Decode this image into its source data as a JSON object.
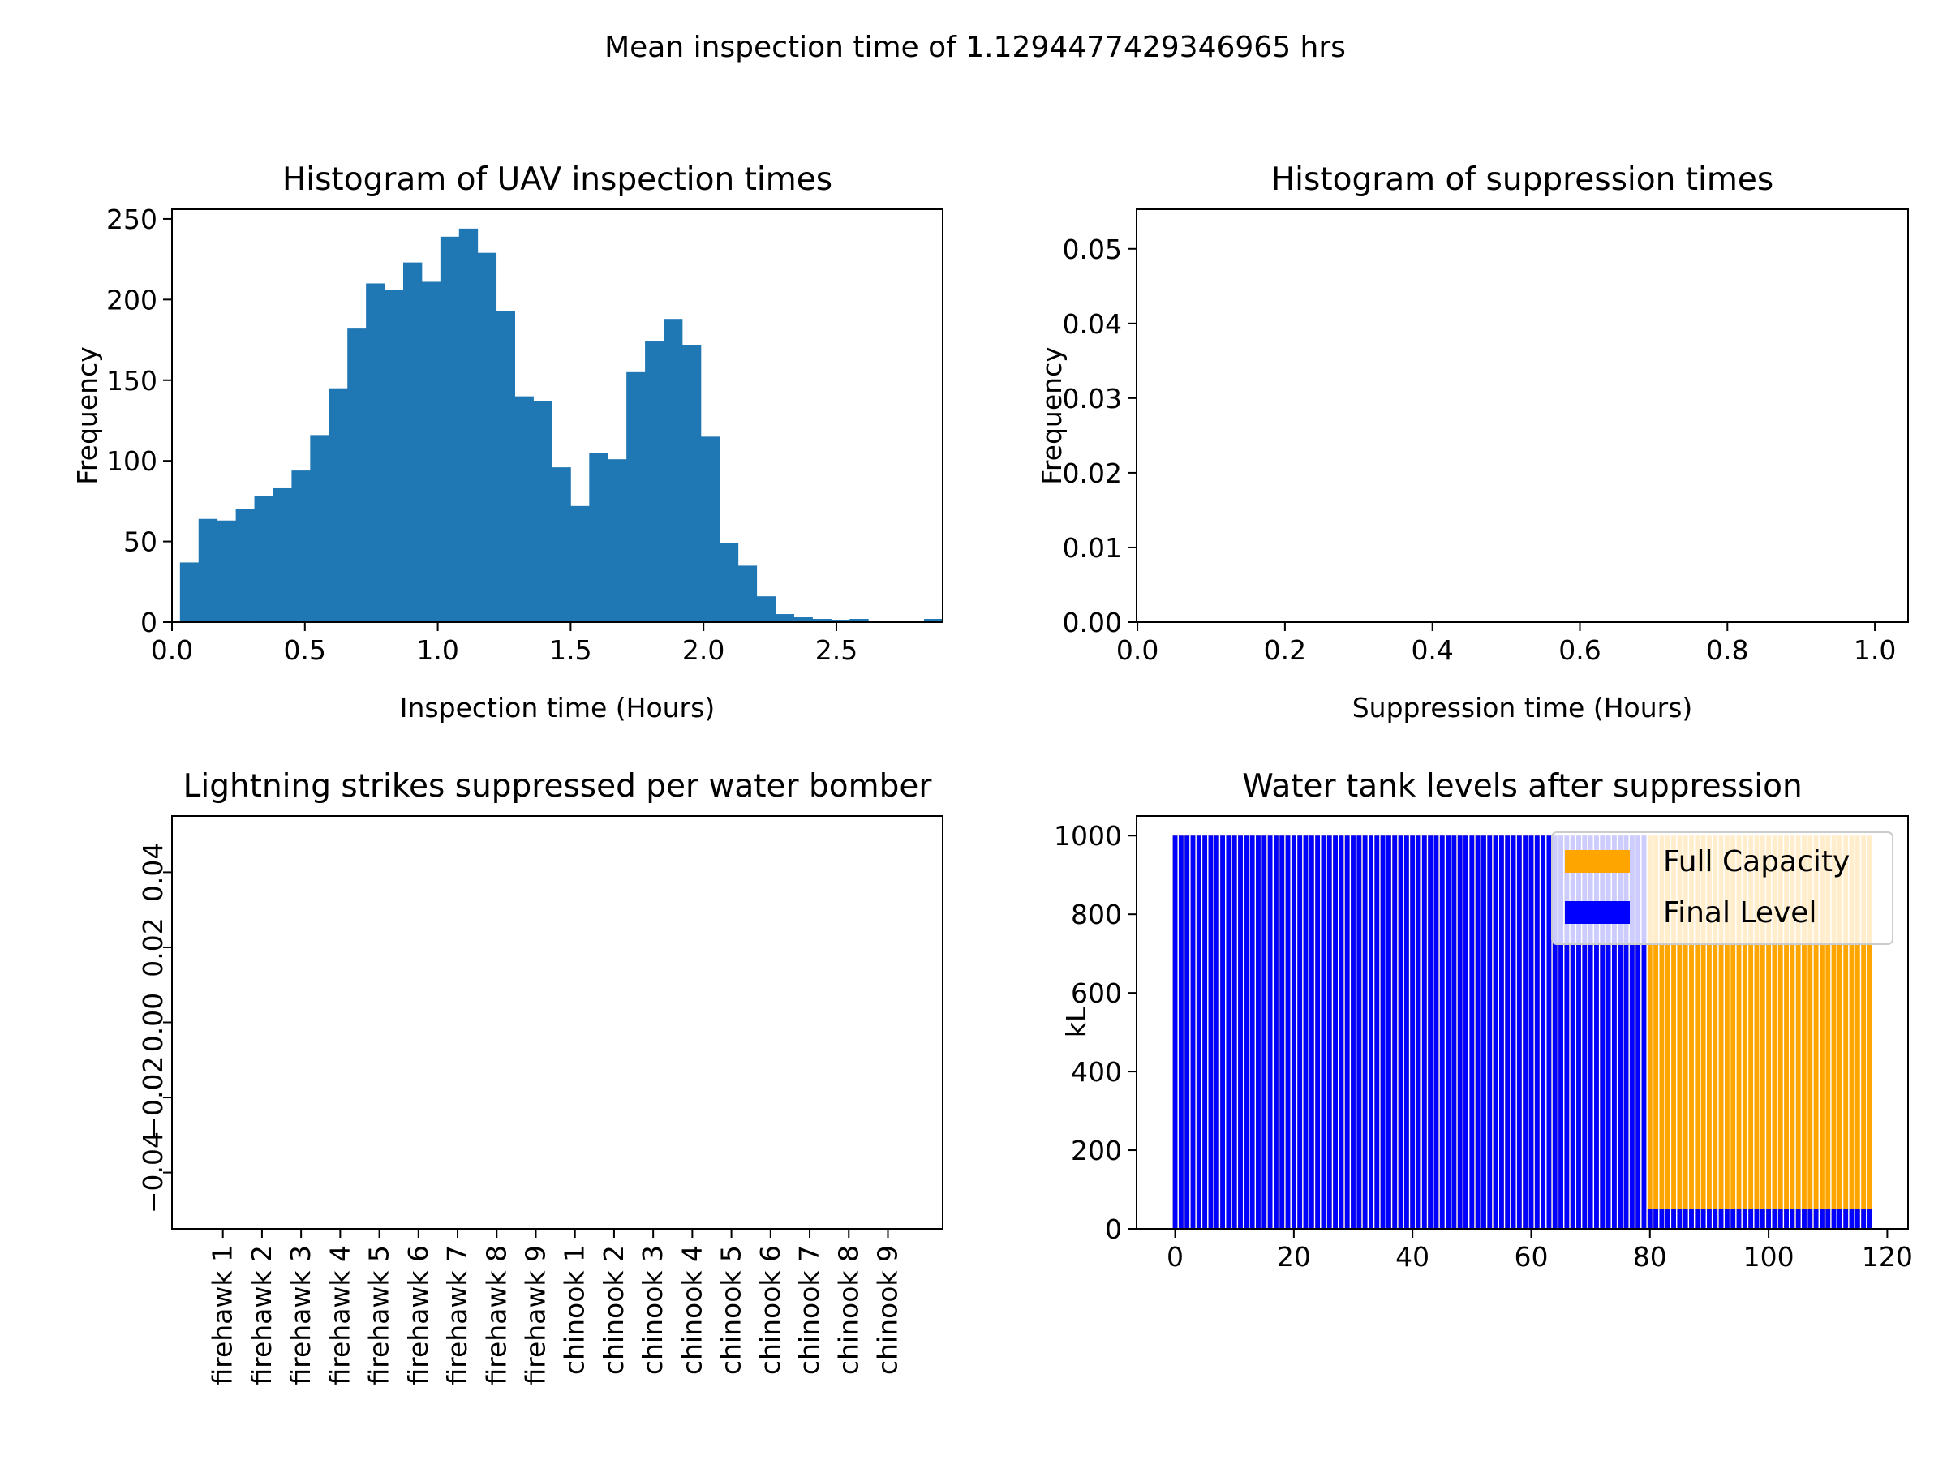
{
  "suptitle": "Mean inspection time of 1.1294477429346965 hrs",
  "chart_data": [
    {
      "type": "histogram",
      "title": "Histogram of UAV inspection times",
      "xlabel": "Inspection time (Hours)",
      "ylabel": "Frequency",
      "xlim": [
        0.0,
        2.9
      ],
      "ylim": [
        0,
        250
      ],
      "xticks": [
        "0.0",
        "0.5",
        "1.0",
        "1.5",
        "2.0",
        "2.5"
      ],
      "yticks": [
        "0",
        "50",
        "100",
        "150",
        "200",
        "250"
      ],
      "bin_start": 0.03,
      "bin_width": 0.07,
      "counts": [
        37,
        64,
        63,
        70,
        78,
        83,
        94,
        116,
        145,
        182,
        210,
        206,
        223,
        211,
        239,
        244,
        229,
        193,
        140,
        137,
        96,
        72,
        105,
        101,
        155,
        174,
        188,
        172,
        115,
        49,
        35,
        16,
        5,
        3,
        2,
        1,
        2,
        0,
        0,
        0,
        2
      ],
      "color": "#1f77b4"
    },
    {
      "type": "histogram",
      "title": "Histogram of suppression times",
      "xlabel": "Suppression time (Hours)",
      "ylabel": "Frequency",
      "xlim": [
        0.0,
        1.0
      ],
      "ylim": [
        0.0,
        0.05
      ],
      "xticks": [
        "0.0",
        "0.2",
        "0.4",
        "0.6",
        "0.8",
        "1.0"
      ],
      "yticks": [
        "0.00",
        "0.01",
        "0.02",
        "0.03",
        "0.04",
        "0.05"
      ],
      "counts": []
    },
    {
      "type": "bar",
      "title": "Lightning strikes suppressed per water bomber",
      "categories": [
        "firehawk 1",
        "firehawk 2",
        "firehawk 3",
        "firehawk 4",
        "firehawk 5",
        "firehawk 6",
        "firehawk 7",
        "firehawk 8",
        "firehawk 9",
        "chinook 1",
        "chinook 2",
        "chinook 3",
        "chinook 4",
        "chinook 5",
        "chinook 6",
        "chinook 7",
        "chinook 8",
        "chinook 9"
      ],
      "values": [
        0,
        0,
        0,
        0,
        0,
        0,
        0,
        0,
        0,
        0,
        0,
        0,
        0,
        0,
        0,
        0,
        0,
        0
      ],
      "ylim": [
        -0.055,
        0.055
      ],
      "yticks": [
        "−0.04",
        "−0.02",
        "0.00",
        "0.02",
        "0.04"
      ]
    },
    {
      "type": "bar",
      "title": "Water tank levels after suppression",
      "ylabel": "kL",
      "xlim": [
        -6.5,
        123.5
      ],
      "ylim": [
        0,
        1050
      ],
      "xticks": [
        "0",
        "20",
        "40",
        "60",
        "80",
        "100",
        "120"
      ],
      "yticks": [
        "0",
        "200",
        "400",
        "600",
        "800",
        "1000"
      ],
      "legend": {
        "position": "upper-right",
        "entries": [
          "Full Capacity",
          "Final Level"
        ]
      },
      "series": [
        {
          "name": "Full Capacity",
          "color": "#ffa500",
          "segments": [
            {
              "from": 0,
              "to": 117,
              "value": 1000
            }
          ]
        },
        {
          "name": "Final Level",
          "color": "#0000ff",
          "segments": [
            {
              "from": 0,
              "to": 79,
              "value": 1000
            },
            {
              "from": 80,
              "to": 117,
              "value": 50
            }
          ]
        }
      ]
    }
  ]
}
